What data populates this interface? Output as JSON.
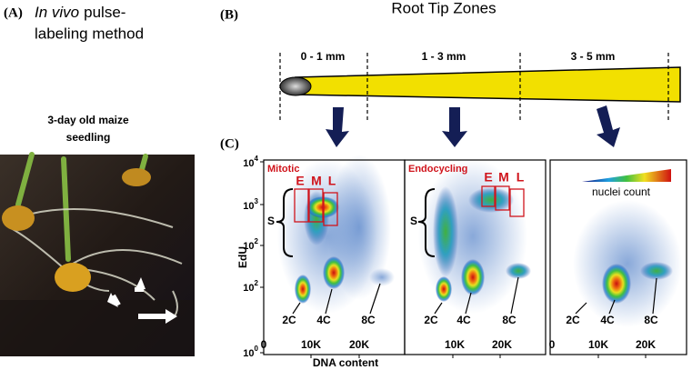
{
  "panel_a": {
    "label": "(A)",
    "title_italic": "In vivo",
    "title_rest": "pulse-",
    "title_line2": "labeling method",
    "caption_lines": [
      "3-day old maize",
      "seedling"
    ]
  },
  "panel_b": {
    "label": "(B)",
    "title": "Root Tip Zones",
    "zones": [
      "0 - 1 mm",
      "1 - 3 mm",
      "3 - 5 mm"
    ]
  },
  "panel_c": {
    "label": "(C)",
    "y_label": "EdU",
    "x_label": "DNA content",
    "yticks": [
      {
        "base": "10",
        "exp": "4"
      },
      {
        "base": "10",
        "exp": "3"
      },
      {
        "base": "10",
        "exp": "2"
      },
      {
        "base": "10",
        "exp": "2"
      },
      {
        "base": "10",
        "exp": "0"
      }
    ],
    "plots": [
      {
        "title": "Mitotic",
        "phases": [
          "E",
          "M",
          "L"
        ],
        "s_label": "S",
        "ploidy": [
          "2C",
          "4C",
          "8C"
        ],
        "xticks": [
          "0",
          "10K",
          "20K"
        ]
      },
      {
        "title": "Endocycling",
        "phases": [
          "E",
          "M",
          "L"
        ],
        "s_label": "S",
        "ploidy": [
          "2C",
          "4C",
          "8C"
        ],
        "xticks": [
          "10K",
          "20K"
        ]
      },
      {
        "legend": "nuclei count",
        "ploidy": [
          "2C",
          "4C",
          "8C"
        ],
        "xticks": [
          "0",
          "10K",
          "20K"
        ]
      }
    ]
  }
}
